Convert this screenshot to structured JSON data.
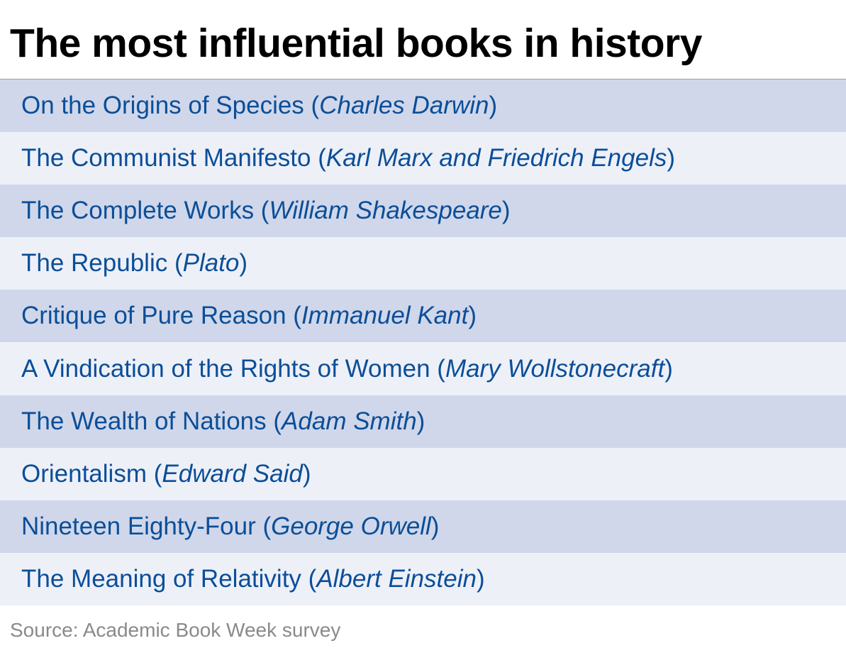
{
  "title": "The most influential books in history",
  "books": [
    {
      "title": "On the Origins of Species",
      "author": "Charles Darwin"
    },
    {
      "title": "The Communist Manifesto",
      "author": "Karl Marx and Friedrich Engels"
    },
    {
      "title": "The Complete Works",
      "author": "William Shakespeare"
    },
    {
      "title": "The Republic",
      "author": "Plato"
    },
    {
      "title": "Critique of Pure Reason",
      "author": "Immanuel Kant"
    },
    {
      "title": "A Vindication of the Rights of Women",
      "author": "Mary Wollstonecraft"
    },
    {
      "title": "The Wealth of Nations",
      "author": "Adam Smith"
    },
    {
      "title": "Orientalism",
      "author": "Edward Said"
    },
    {
      "title": "Nineteen Eighty-Four",
      "author": "George Orwell"
    },
    {
      "title": "The Meaning of Relativity",
      "author": "Albert Einstein"
    }
  ],
  "source": "Source: Academic Book Week survey",
  "colors": {
    "text": "#0b4e98",
    "row_dark": "#d0d7ea",
    "row_light": "#eef0f8"
  }
}
